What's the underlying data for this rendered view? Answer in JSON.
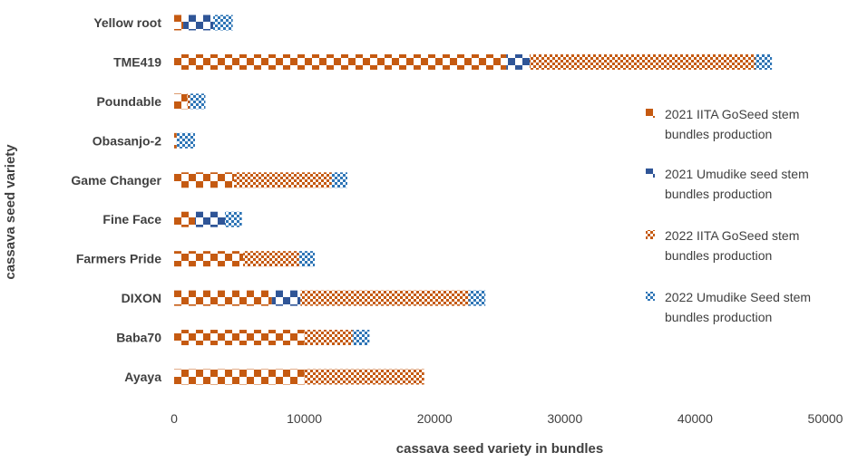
{
  "chart_data": {
    "type": "bar",
    "orientation": "horizontal",
    "stacked": true,
    "categories": [
      "Ayaya",
      "Baba70",
      "DIXON",
      "Farmers Pride",
      "Fine Face",
      "Game Changer",
      "Obasanjo-2",
      "Poundable",
      "TME419",
      "Yellow root"
    ],
    "series": [
      {
        "name": "2021 IITA GoSeed stem bundles production",
        "color": "#C55A11",
        "pattern": "large-checker",
        "values": [
          10000,
          10000,
          7500,
          5300,
          1600,
          4600,
          200,
          1000,
          25500,
          700
        ]
      },
      {
        "name": "2021 Umudike seed stem bundles production",
        "color": "#2F5597",
        "pattern": "large-checker",
        "values": [
          0,
          0,
          2200,
          0,
          2300,
          0,
          0,
          0,
          1800,
          2300
        ]
      },
      {
        "name": "2022 IITA GoSeed stem bundles production",
        "color": "#C55A11",
        "pattern": "small-checker",
        "values": [
          9200,
          3700,
          12900,
          4300,
          0,
          7500,
          0,
          200,
          17300,
          0
        ]
      },
      {
        "name": "2022 Umudike Seed stem bundles production",
        "color": "#2E75B6",
        "pattern": "small-checker",
        "values": [
          0,
          1300,
          1300,
          1200,
          1300,
          1200,
          1400,
          1200,
          1300,
          1500
        ]
      }
    ],
    "xlabel": "cassava seed variety in bundles",
    "ylabel": "cassava seed variety",
    "xlim": [
      0,
      50000
    ],
    "xticks": [
      0,
      10000,
      20000,
      30000,
      40000,
      50000
    ],
    "grid": false,
    "legend_position": "right"
  }
}
